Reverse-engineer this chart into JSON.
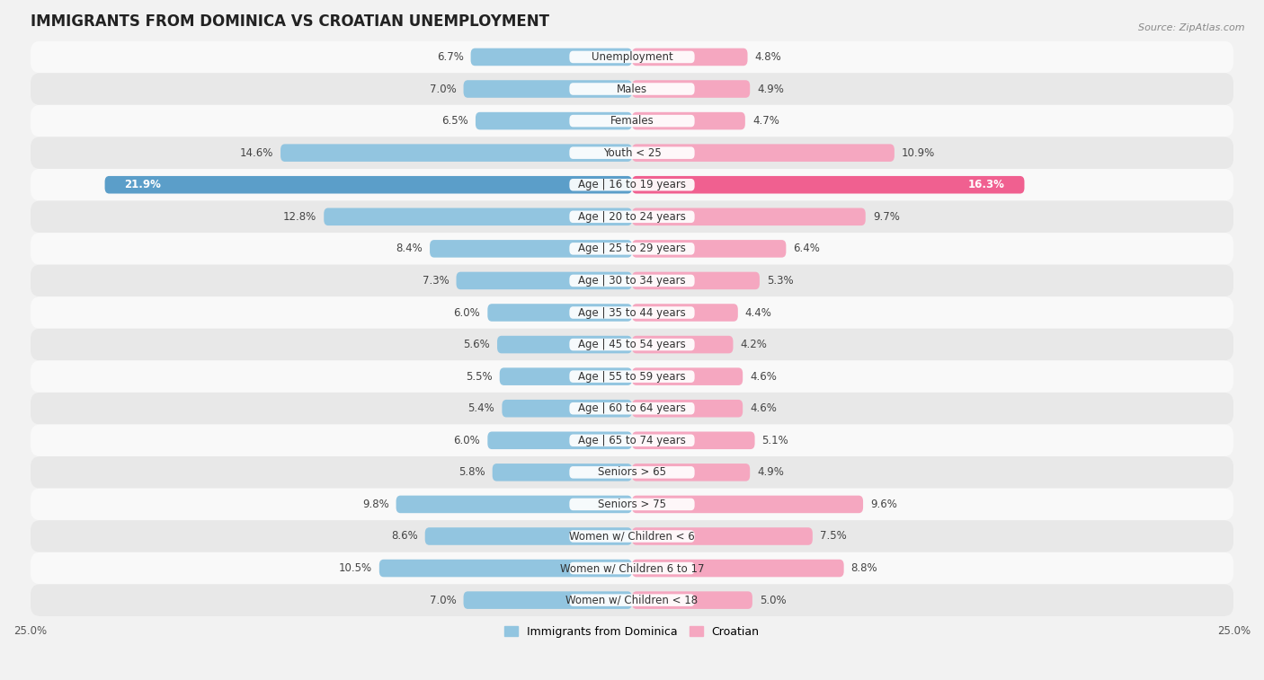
{
  "title": "IMMIGRANTS FROM DOMINICA VS CROATIAN UNEMPLOYMENT",
  "source": "Source: ZipAtlas.com",
  "categories": [
    "Unemployment",
    "Males",
    "Females",
    "Youth < 25",
    "Age | 16 to 19 years",
    "Age | 20 to 24 years",
    "Age | 25 to 29 years",
    "Age | 30 to 34 years",
    "Age | 35 to 44 years",
    "Age | 45 to 54 years",
    "Age | 55 to 59 years",
    "Age | 60 to 64 years",
    "Age | 65 to 74 years",
    "Seniors > 65",
    "Seniors > 75",
    "Women w/ Children < 6",
    "Women w/ Children 6 to 17",
    "Women w/ Children < 18"
  ],
  "left_values": [
    6.7,
    7.0,
    6.5,
    14.6,
    21.9,
    12.8,
    8.4,
    7.3,
    6.0,
    5.6,
    5.5,
    5.4,
    6.0,
    5.8,
    9.8,
    8.6,
    10.5,
    7.0
  ],
  "right_values": [
    4.8,
    4.9,
    4.7,
    10.9,
    16.3,
    9.7,
    6.4,
    5.3,
    4.4,
    4.2,
    4.6,
    4.6,
    5.1,
    4.9,
    9.6,
    7.5,
    8.8,
    5.0
  ],
  "left_color": "#92C5E0",
  "right_color": "#F5A7C0",
  "left_highlight_color": "#5B9EC9",
  "right_highlight_color": "#F06090",
  "highlight_index": 4,
  "left_label": "Immigrants from Dominica",
  "right_label": "Croatian",
  "xlim": 25.0,
  "background_color": "#f2f2f2",
  "row_color_odd": "#f9f9f9",
  "row_color_even": "#e8e8e8",
  "label_bg_color": "#ffffff",
  "title_fontsize": 12,
  "label_fontsize": 8.5,
  "value_fontsize": 8.5
}
